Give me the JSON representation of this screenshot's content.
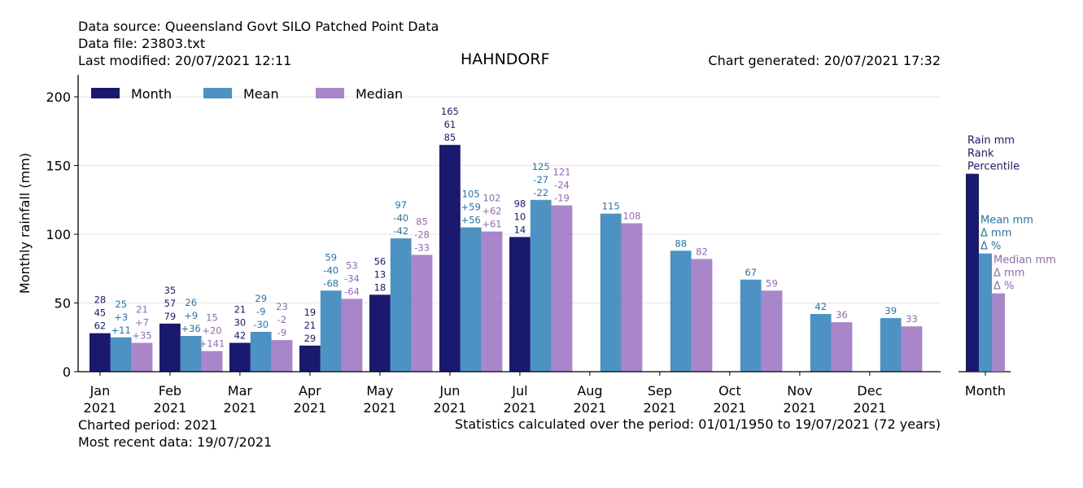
{
  "header": {
    "source": "Data source: Queensland Govt SILO Patched Point Data",
    "file": "Data file: 23803.txt",
    "modified": "Last modified: 20/07/2021 12:11",
    "title": "HAHNDORF",
    "generated": "Chart generated: 20/07/2021 17:32"
  },
  "footer": {
    "period": "Charted period: 2021",
    "recent": "Most recent data: 19/07/2021",
    "stats": "Statistics calculated over the period: 01/01/1950 to 19/07/2021 (72 years)"
  },
  "colors": {
    "month": "#191970",
    "mean": "#1f77b4",
    "median": "#9467bd"
  },
  "chart_data": {
    "type": "bar",
    "ylabel": "Monthly rainfall (mm)",
    "ylim": [
      0,
      216
    ],
    "yticks": [
      "0",
      "50",
      "100",
      "150",
      "200"
    ],
    "grid": true,
    "legend_position": "top-left",
    "legend": [
      "Month",
      "Mean",
      "Median"
    ],
    "categories": [
      [
        "Jan",
        "2021"
      ],
      [
        "Feb",
        "2021"
      ],
      [
        "Mar",
        "2021"
      ],
      [
        "Apr",
        "2021"
      ],
      [
        "May",
        "2021"
      ],
      [
        "Jun",
        "2021"
      ],
      [
        "Jul",
        "2021"
      ],
      [
        "Aug",
        "2021"
      ],
      [
        "Sep",
        "2021"
      ],
      [
        "Oct",
        "2021"
      ],
      [
        "Nov",
        "2021"
      ],
      [
        "Dec",
        "2021"
      ]
    ],
    "series": [
      {
        "name": "Month",
        "values": [
          28,
          35,
          21,
          19,
          56,
          165,
          98,
          null,
          null,
          null,
          null,
          null
        ],
        "labels": [
          [
            "28",
            "45",
            "62"
          ],
          [
            "35",
            "57",
            "79"
          ],
          [
            "21",
            "30",
            "42"
          ],
          [
            "19",
            "21",
            "29"
          ],
          [
            "56",
            "13",
            "18"
          ],
          [
            "165",
            "61",
            "85"
          ],
          [
            "98",
            "10",
            "14"
          ],
          null,
          null,
          null,
          null,
          null
        ]
      },
      {
        "name": "Mean",
        "values": [
          25,
          26,
          29,
          59,
          97,
          105,
          125,
          115,
          88,
          67,
          42,
          39
        ],
        "labels": [
          [
            "25",
            "+3",
            "+11"
          ],
          [
            "26",
            "+9",
            "+36"
          ],
          [
            "29",
            "-9",
            "-30"
          ],
          [
            "59",
            "-40",
            "-68"
          ],
          [
            "97",
            "-40",
            "-42"
          ],
          [
            "105",
            "+59",
            "+56"
          ],
          [
            "125",
            "-27",
            "-22"
          ],
          [
            "115"
          ],
          [
            "88"
          ],
          [
            "67"
          ],
          [
            "42"
          ],
          [
            "39"
          ]
        ]
      },
      {
        "name": "Median",
        "values": [
          21,
          15,
          23,
          53,
          85,
          102,
          121,
          108,
          82,
          59,
          36,
          33
        ],
        "labels": [
          [
            "21",
            "+7",
            "+35"
          ],
          [
            "15",
            "+20",
            "+141"
          ],
          [
            "23",
            "-2",
            "-9"
          ],
          [
            "53",
            "-34",
            "-64"
          ],
          [
            "85",
            "-28",
            "-33"
          ],
          [
            "102",
            "+62",
            "+61"
          ],
          [
            "121",
            "-24",
            "-19"
          ],
          [
            "108"
          ],
          [
            "82"
          ],
          [
            "59"
          ],
          [
            "36"
          ],
          [
            "33"
          ]
        ]
      }
    ],
    "key_panel": {
      "xlabel": "Month",
      "month_lines": [
        "Rain mm",
        "Rank",
        "Percentile"
      ],
      "mean_lines": [
        "Mean mm",
        "Δ mm",
        "Δ %"
      ],
      "median_lines": [
        "Median mm",
        "Δ mm",
        "Δ %"
      ],
      "values": [
        144,
        86,
        57
      ]
    }
  }
}
